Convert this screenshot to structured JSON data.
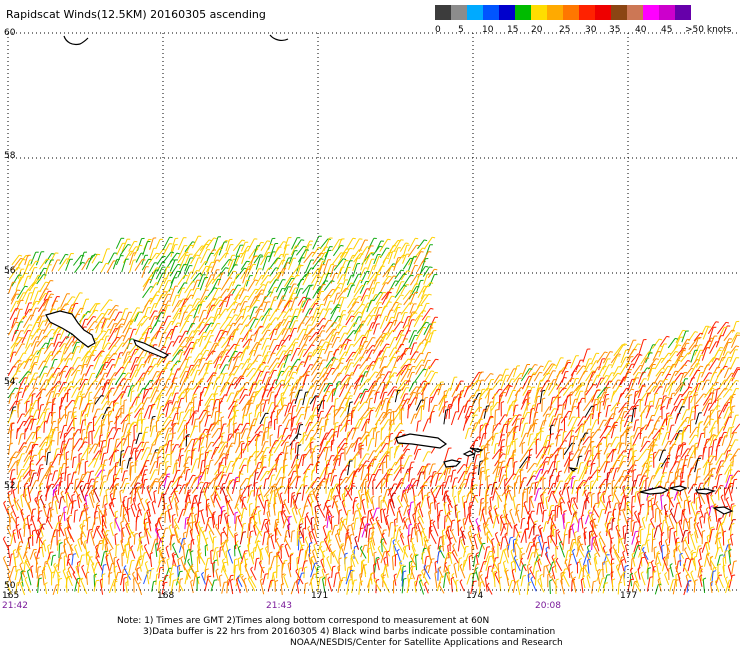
{
  "title": "Rapidscat Winds(12.5KM) 20160305 ascending",
  "legend": {
    "units": ">50 knots",
    "colors": [
      "#3c3c3c",
      "#8c8c8c",
      "#00aaff",
      "#0055ff",
      "#0000cc",
      "#00bb00",
      "#ffdd00",
      "#ffaa00",
      "#ff7700",
      "#ff2200",
      "#ee0000",
      "#8b4513",
      "#cc7755",
      "#ff00ff",
      "#cc00cc",
      "#6600aa"
    ],
    "labels": [
      "0",
      "5",
      "10",
      "15",
      "20",
      "25",
      "30",
      "35",
      "40",
      "45",
      ">50 knots"
    ]
  },
  "map": {
    "lat_labels": [
      "60",
      "58",
      "56",
      "54",
      "52",
      "50"
    ],
    "lon_labels": [
      "165",
      "168",
      "171",
      "174",
      "177"
    ],
    "time_labels": [
      "21:42",
      "21:43",
      "20:08"
    ],
    "wind_colors": {
      "green": "#11aa11",
      "yellow": "#ffd000",
      "orange": "#ff8c00",
      "red": "#ff1e00",
      "dark_red": "#c80000",
      "magenta": "#e000e0",
      "blue": "#2255ff",
      "black": "#000000"
    }
  },
  "notes": {
    "line1": "Note: 1) Times are GMT 2)Times along bottom correspond to measurement at 60N",
    "line2": "3)Data buffer is 22 hrs from 20160305 4) Black wind barbs indicate possible contamination",
    "line3": "NOAA/NESDIS/Center for Satellite Applications and Research"
  }
}
